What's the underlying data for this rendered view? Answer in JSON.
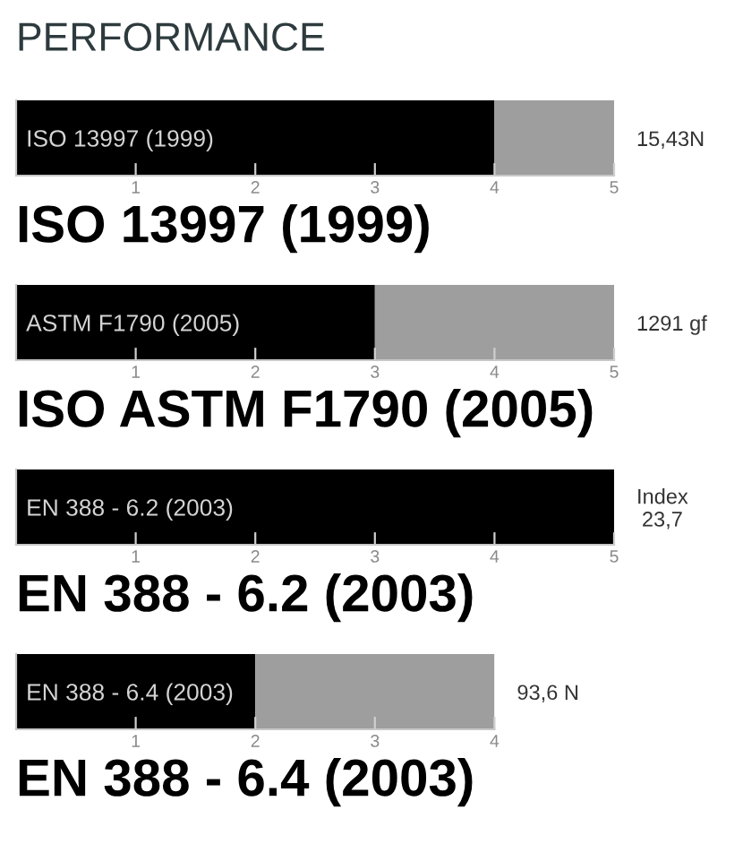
{
  "chart_data": [
    {
      "type": "bar",
      "orientation": "horizontal",
      "stacked": true,
      "title": "PERFORMANCE",
      "xlabel": "ISO 13997 (1999)",
      "categories": [
        "ISO 13997 (1999)"
      ],
      "series": [
        {
          "color": "#000000",
          "values": [
            4
          ]
        },
        {
          "color": "#9e9e9e",
          "values": [
            1
          ]
        }
      ],
      "xlim": [
        0,
        5
      ],
      "xticks": [
        1,
        2,
        3,
        4,
        5
      ],
      "annotations": [
        "15,43N"
      ]
    },
    {
      "type": "bar",
      "orientation": "horizontal",
      "stacked": true,
      "xlabel": "ISO ASTM F1790 (2005)",
      "categories": [
        "ASTM F1790 (2005)"
      ],
      "series": [
        {
          "color": "#000000",
          "values": [
            3
          ]
        },
        {
          "color": "#9e9e9e",
          "values": [
            2
          ]
        }
      ],
      "xlim": [
        0,
        5
      ],
      "xticks": [
        1,
        2,
        3,
        4,
        5
      ],
      "annotations": [
        "1291 gf"
      ]
    },
    {
      "type": "bar",
      "orientation": "horizontal",
      "stacked": true,
      "xlabel": "EN 388 - 6.2 (2003)",
      "categories": [
        "EN 388 - 6.2 (2003)"
      ],
      "series": [
        {
          "color": "#000000",
          "values": [
            5
          ]
        }
      ],
      "xlim": [
        0,
        5
      ],
      "xticks": [
        1,
        2,
        3,
        4,
        5
      ],
      "annotations": [
        "Index\n23,7"
      ]
    },
    {
      "type": "bar",
      "orientation": "horizontal",
      "stacked": true,
      "xlabel": "EN 388 - 6.4 (2003)",
      "categories": [
        "EN 388 - 6.4 (2003)"
      ],
      "series": [
        {
          "color": "#000000",
          "values": [
            2
          ]
        },
        {
          "color": "#9e9e9e",
          "values": [
            2
          ]
        }
      ],
      "xlim": [
        0,
        4
      ],
      "xticks": [
        1,
        2,
        3,
        4
      ],
      "annotations": [
        "93,6 N"
      ]
    }
  ]
}
